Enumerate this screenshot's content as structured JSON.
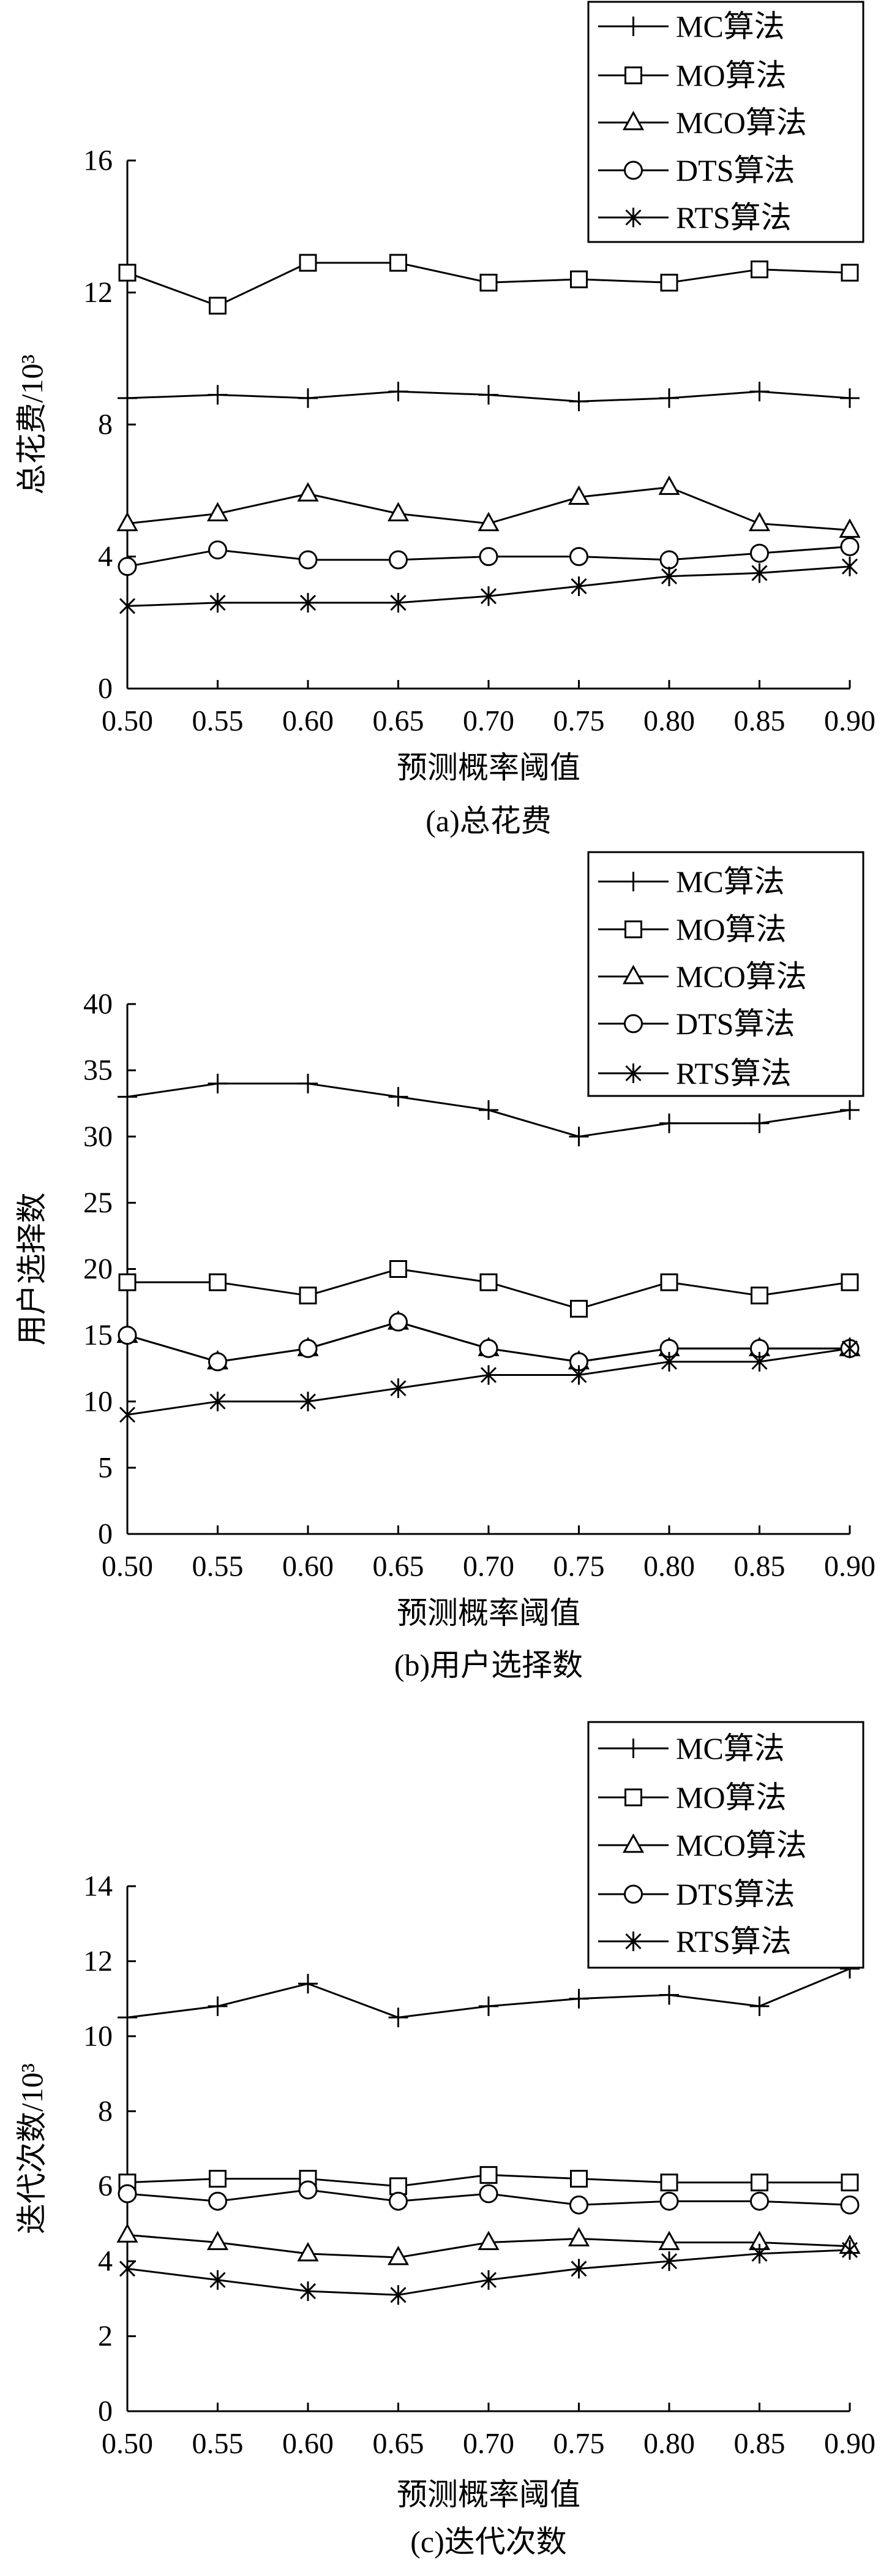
{
  "figure": {
    "background": "#ffffff",
    "ink_color": "#000000"
  },
  "chart_data": [
    {
      "type": "line",
      "caption": "(a)总花费",
      "xlabel": "预测概率阈值",
      "ylabel": "总花费/10³",
      "x": [
        0.5,
        0.55,
        0.6,
        0.65,
        0.7,
        0.75,
        0.8,
        0.85,
        0.9
      ],
      "x_tick_labels": [
        "0.50",
        "0.55",
        "0.60",
        "0.65",
        "0.70",
        "0.75",
        "0.80",
        "0.85",
        "0.90"
      ],
      "ylim": [
        0,
        16
      ],
      "y_ticks": [
        0,
        4,
        8,
        12,
        16
      ],
      "y_tick_labels": [
        "0",
        "4",
        "8",
        "12",
        "16"
      ],
      "grid": false,
      "legend_position": "top-right",
      "series": [
        {
          "name": "MC算法",
          "marker": "plus",
          "values": [
            8.8,
            8.9,
            8.8,
            9.0,
            8.9,
            8.7,
            8.8,
            9.0,
            8.8
          ]
        },
        {
          "name": "MO算法",
          "marker": "square",
          "values": [
            12.6,
            11.6,
            12.9,
            12.9,
            12.3,
            12.4,
            12.3,
            12.7,
            12.6
          ]
        },
        {
          "name": "MCO算法",
          "marker": "triangle",
          "values": [
            5.0,
            5.3,
            5.9,
            5.3,
            5.0,
            5.8,
            6.1,
            5.0,
            4.8
          ]
        },
        {
          "name": "DTS算法",
          "marker": "circle",
          "values": [
            3.7,
            4.2,
            3.9,
            3.9,
            4.0,
            4.0,
            3.9,
            4.1,
            4.3
          ]
        },
        {
          "name": "RTS算法",
          "marker": "asterisk",
          "values": [
            2.5,
            2.6,
            2.6,
            2.6,
            2.8,
            3.1,
            3.4,
            3.5,
            3.7
          ]
        }
      ]
    },
    {
      "type": "line",
      "caption": "(b)用户选择数",
      "xlabel": "预测概率阈值",
      "ylabel": "用户选择数",
      "x": [
        0.5,
        0.55,
        0.6,
        0.65,
        0.7,
        0.75,
        0.8,
        0.85,
        0.9
      ],
      "x_tick_labels": [
        "0.50",
        "0.55",
        "0.60",
        "0.65",
        "0.70",
        "0.75",
        "0.80",
        "0.85",
        "0.90"
      ],
      "ylim": [
        0,
        40
      ],
      "y_ticks": [
        0,
        5,
        10,
        15,
        20,
        25,
        30,
        35,
        40
      ],
      "y_tick_labels": [
        "0",
        "5",
        "10",
        "15",
        "20",
        "25",
        "30",
        "35",
        "40"
      ],
      "grid": false,
      "legend_position": "top-right",
      "series": [
        {
          "name": "MC算法",
          "marker": "plus",
          "values": [
            33,
            34,
            34,
            33,
            32,
            30,
            31,
            31,
            32
          ]
        },
        {
          "name": "MO算法",
          "marker": "square",
          "values": [
            19,
            19,
            18,
            20,
            19,
            17,
            19,
            18,
            19
          ]
        },
        {
          "name": "MCO算法",
          "marker": "triangle",
          "values": [
            15,
            13,
            14,
            16,
            14,
            13,
            14,
            14,
            14
          ]
        },
        {
          "name": "DTS算法",
          "marker": "circle",
          "values": [
            15,
            13,
            14,
            16,
            14,
            13,
            14,
            14,
            14
          ]
        },
        {
          "name": "RTS算法",
          "marker": "asterisk",
          "values": [
            9,
            10,
            10,
            11,
            12,
            12,
            13,
            13,
            14
          ]
        }
      ]
    },
    {
      "type": "line",
      "caption": "(c)迭代次数",
      "xlabel": "预测概率阈值",
      "ylabel": "迭代次数/10³",
      "x": [
        0.5,
        0.55,
        0.6,
        0.65,
        0.7,
        0.75,
        0.8,
        0.85,
        0.9
      ],
      "x_tick_labels": [
        "0.50",
        "0.55",
        "0.60",
        "0.65",
        "0.70",
        "0.75",
        "0.80",
        "0.85",
        "0.90"
      ],
      "ylim": [
        0,
        14
      ],
      "y_ticks": [
        0,
        2,
        4,
        6,
        8,
        10,
        12,
        14
      ],
      "y_tick_labels": [
        "0",
        "2",
        "4",
        "6",
        "8",
        "10",
        "12",
        "14"
      ],
      "grid": false,
      "legend_position": "top-right",
      "series": [
        {
          "name": "MC算法",
          "marker": "plus",
          "values": [
            10.5,
            10.8,
            11.4,
            10.5,
            10.8,
            11.0,
            11.1,
            10.8,
            11.8
          ]
        },
        {
          "name": "MO算法",
          "marker": "square",
          "values": [
            6.1,
            6.2,
            6.2,
            6.0,
            6.3,
            6.2,
            6.1,
            6.1,
            6.1
          ]
        },
        {
          "name": "MCO算法",
          "marker": "triangle",
          "values": [
            4.7,
            4.5,
            4.2,
            4.1,
            4.5,
            4.6,
            4.5,
            4.5,
            4.4
          ]
        },
        {
          "name": "DTS算法",
          "marker": "circle",
          "values": [
            5.8,
            5.6,
            5.9,
            5.6,
            5.8,
            5.5,
            5.6,
            5.6,
            5.5
          ]
        },
        {
          "name": "RTS算法",
          "marker": "asterisk",
          "values": [
            3.8,
            3.5,
            3.2,
            3.1,
            3.5,
            3.8,
            4.0,
            4.2,
            4.3
          ]
        }
      ]
    }
  ]
}
